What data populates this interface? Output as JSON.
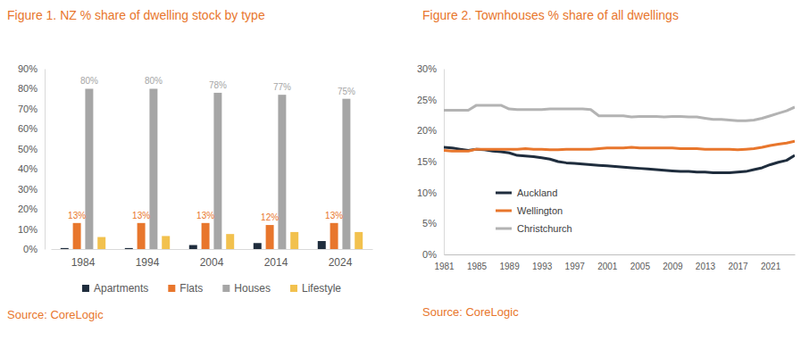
{
  "chart_data": [
    {
      "type": "bar",
      "title": "Figure 1. NZ % share of dwelling stock by type",
      "source": "Source: CoreLogic",
      "categories": [
        "1984",
        "1994",
        "2004",
        "2014",
        "2024"
      ],
      "series": [
        {
          "name": "Apartments",
          "color": "#1f2d3d",
          "values": [
            0.5,
            0.5,
            2,
            3,
            4
          ]
        },
        {
          "name": "Flats",
          "color": "#e8762c",
          "values": [
            13,
            13,
            13,
            12,
            13
          ],
          "data_labels": true,
          "value_labels": [
            "13%",
            "13%",
            "13%",
            "12%",
            "13%"
          ]
        },
        {
          "name": "Houses",
          "color": "#a6a6a6",
          "values": [
            80,
            80,
            78,
            77,
            75
          ],
          "data_labels": true,
          "value_labels": [
            "80%",
            "80%",
            "78%",
            "77%",
            "75%"
          ]
        },
        {
          "name": "Lifestyle",
          "color": "#f2c14e",
          "values": [
            6,
            6.5,
            7.5,
            8.5,
            8.5
          ]
        }
      ],
      "ylim": [
        0,
        90
      ],
      "yticks": [
        {
          "value": 0,
          "label": "0%"
        },
        {
          "value": 10,
          "label": "10%"
        },
        {
          "value": 20,
          "label": "20%"
        },
        {
          "value": 30,
          "label": "30%"
        },
        {
          "value": 40,
          "label": "40%"
        },
        {
          "value": 50,
          "label": "50%"
        },
        {
          "value": 60,
          "label": "60%"
        },
        {
          "value": 70,
          "label": "70%"
        },
        {
          "value": 80,
          "label": "80%"
        },
        {
          "value": 90,
          "label": "90%"
        }
      ],
      "grid": false,
      "legend": "bottom"
    },
    {
      "type": "line",
      "title": "Figure 2. Townhouses % share of all dwellings",
      "source": "Source: CoreLogic",
      "x": [
        1981,
        1982,
        1983,
        1984,
        1985,
        1986,
        1987,
        1988,
        1989,
        1990,
        1991,
        1992,
        1993,
        1994,
        1995,
        1996,
        1997,
        1998,
        1999,
        2000,
        2001,
        2002,
        2003,
        2004,
        2005,
        2006,
        2007,
        2008,
        2009,
        2010,
        2011,
        2012,
        2013,
        2014,
        2015,
        2016,
        2017,
        2018,
        2019,
        2020,
        2021,
        2022,
        2023,
        2024
      ],
      "series": [
        {
          "name": "Auckland",
          "color": "#1f2d3d",
          "values": [
            17.3,
            17.2,
            17.0,
            16.8,
            17.0,
            16.9,
            16.7,
            16.6,
            16.4,
            16.0,
            15.9,
            15.8,
            15.6,
            15.4,
            15.0,
            14.8,
            14.7,
            14.6,
            14.5,
            14.4,
            14.3,
            14.2,
            14.1,
            14.0,
            13.9,
            13.8,
            13.7,
            13.6,
            13.5,
            13.4,
            13.4,
            13.3,
            13.3,
            13.2,
            13.2,
            13.2,
            13.3,
            13.4,
            13.7,
            14.0,
            14.5,
            14.9,
            15.2,
            16.0
          ]
        },
        {
          "name": "Wellington",
          "color": "#e8762c",
          "values": [
            16.8,
            16.7,
            16.7,
            16.7,
            17.0,
            17.0,
            17.0,
            17.0,
            17.0,
            17.0,
            17.1,
            17.0,
            17.0,
            16.9,
            16.9,
            17.0,
            17.0,
            17.0,
            17.0,
            17.1,
            17.2,
            17.2,
            17.2,
            17.3,
            17.2,
            17.2,
            17.2,
            17.2,
            17.2,
            17.1,
            17.1,
            17.1,
            17.0,
            17.0,
            17.0,
            17.0,
            16.9,
            17.0,
            17.1,
            17.3,
            17.6,
            17.8,
            18.0,
            18.3
          ]
        },
        {
          "name": "Christchurch",
          "color": "#b3b3b3",
          "values": [
            23.3,
            23.3,
            23.3,
            23.3,
            24.1,
            24.1,
            24.1,
            24.1,
            23.5,
            23.4,
            23.4,
            23.4,
            23.4,
            23.5,
            23.5,
            23.5,
            23.5,
            23.5,
            23.4,
            22.4,
            22.4,
            22.4,
            22.4,
            22.2,
            22.3,
            22.3,
            22.3,
            22.2,
            22.3,
            22.3,
            22.2,
            22.2,
            22.0,
            21.8,
            21.8,
            21.7,
            21.6,
            21.6,
            21.7,
            22.0,
            22.4,
            22.8,
            23.2,
            23.8
          ]
        }
      ],
      "xlim": [
        1981,
        2024
      ],
      "xticks": [
        1981,
        1985,
        1989,
        1993,
        1997,
        2001,
        2005,
        2009,
        2013,
        2017,
        2021
      ],
      "ylim": [
        0,
        30
      ],
      "yticks": [
        {
          "value": 0,
          "label": "0%"
        },
        {
          "value": 5,
          "label": "5%"
        },
        {
          "value": 10,
          "label": "10%"
        },
        {
          "value": 15,
          "label": "15%"
        },
        {
          "value": 20,
          "label": "20%"
        },
        {
          "value": 25,
          "label": "25%"
        },
        {
          "value": 30,
          "label": "30%"
        }
      ],
      "grid": false,
      "legend": "lower left"
    }
  ]
}
